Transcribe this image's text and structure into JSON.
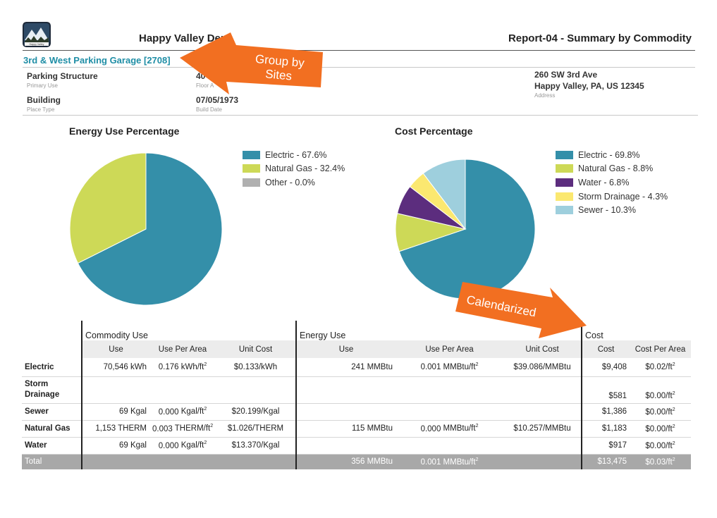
{
  "header": {
    "org_title": "Happy Valley Dem",
    "report_title": "Report-04 - Summary by Commodity",
    "logo_text": "Happy Valley"
  },
  "site": {
    "name": "3rd & West Parking Garage [2708]",
    "primary_use": "Parking Structure",
    "primary_use_label": "Primary Use",
    "place_type": "Building",
    "place_type_label": "Place Type",
    "floor_area": "40",
    "floor_area_label": "Floor A",
    "build_date": "07/05/1973",
    "build_date_label": "Build Date",
    "address_line1": "260 SW 3rd Ave",
    "address_line2": "Happy Valley, PA, US 12345",
    "address_label": "Address"
  },
  "annotations": {
    "group_by": [
      "Group by",
      "Sites"
    ],
    "calendarized": "Calendarized",
    "color": "#f26f21"
  },
  "chart_data": [
    {
      "type": "pie",
      "title": "Energy Use Percentage",
      "slices": [
        {
          "label": "Electric - 67.6%",
          "value": 67.6,
          "color": "#348fa9"
        },
        {
          "label": "Natural Gas - 32.4%",
          "value": 32.4,
          "color": "#cdd957"
        },
        {
          "label": "Other - 0.0%",
          "value": 0.0,
          "color": "#b0b0b0"
        }
      ]
    },
    {
      "type": "pie",
      "title": "Cost Percentage",
      "slices": [
        {
          "label": "Electric - 69.8%",
          "value": 69.8,
          "color": "#348fa9"
        },
        {
          "label": "Natural Gas - 8.8%",
          "value": 8.8,
          "color": "#cdd957"
        },
        {
          "label": "Water - 6.8%",
          "value": 6.8,
          "color": "#5c2d7e"
        },
        {
          "label": "Storm Drainage - 4.3%",
          "value": 4.3,
          "color": "#fbe870"
        },
        {
          "label": "Sewer - 10.3%",
          "value": 10.3,
          "color": "#9ecfdd"
        }
      ]
    }
  ],
  "table": {
    "groups": {
      "commodity_use": "Commodity Use",
      "energy_use": "Energy Use",
      "cost": "Cost"
    },
    "columns": {
      "use": "Use",
      "use_per_area": "Use Per Area",
      "unit_cost": "Unit Cost",
      "e_use": "Use",
      "e_use_per_area": "Use Per Area",
      "e_unit_cost": "Unit Cost",
      "cost": "Cost",
      "cost_per_area": "Cost Per Area"
    },
    "rows": [
      {
        "name": "Electric",
        "use": "70,546",
        "use_unit": "kWh",
        "upa": "0.176",
        "upa_unit": "kWh/ft²",
        "unit_cost": "$0.133/kWh",
        "e_use": "241",
        "e_use_unit": "MMBtu",
        "e_upa": "0.001",
        "e_upa_unit": "MMBtu/ft²",
        "e_unit_cost": "$39.086/MMBtu",
        "cost": "$9,408",
        "cpa": "$0.02/ft²"
      },
      {
        "name": "Storm Drainage",
        "use": "",
        "use_unit": "",
        "upa": "",
        "upa_unit": "",
        "unit_cost": "",
        "e_use": "",
        "e_use_unit": "",
        "e_upa": "",
        "e_upa_unit": "",
        "e_unit_cost": "",
        "cost": "$581",
        "cpa": "$0.00/ft²"
      },
      {
        "name": "Sewer",
        "use": "69",
        "use_unit": "Kgal",
        "upa": "0.000",
        "upa_unit": "Kgal/ft²",
        "unit_cost": "$20.199/Kgal",
        "e_use": "",
        "e_use_unit": "",
        "e_upa": "",
        "e_upa_unit": "",
        "e_unit_cost": "",
        "cost": "$1,386",
        "cpa": "$0.00/ft²"
      },
      {
        "name": "Natural Gas",
        "use": "1,153",
        "use_unit": "THERM",
        "upa": "0.003",
        "upa_unit": "THERM/ft²",
        "unit_cost": "$1.026/THERM",
        "e_use": "115",
        "e_use_unit": "MMBtu",
        "e_upa": "0.000",
        "e_upa_unit": "MMBtu/ft²",
        "e_unit_cost": "$10.257/MMBtu",
        "cost": "$1,183",
        "cpa": "$0.00/ft²"
      },
      {
        "name": "Water",
        "use": "69",
        "use_unit": "Kgal",
        "upa": "0.000",
        "upa_unit": "Kgal/ft²",
        "unit_cost": "$13.370/Kgal",
        "e_use": "",
        "e_use_unit": "",
        "e_upa": "",
        "e_upa_unit": "",
        "e_unit_cost": "",
        "cost": "$917",
        "cpa": "$0.00/ft²"
      }
    ],
    "total": {
      "name": "Total",
      "e_use": "356",
      "e_use_unit": "MMBtu",
      "e_upa": "0.001",
      "e_upa_unit": "MMBtu/ft²",
      "cost": "$13,475",
      "cpa": "$0.03/ft²"
    }
  }
}
